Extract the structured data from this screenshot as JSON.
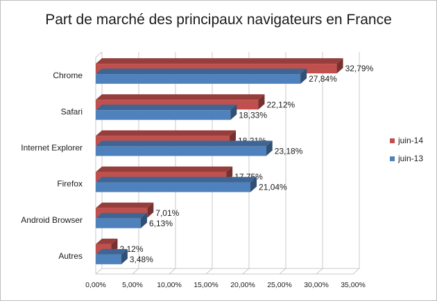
{
  "chart_data": {
    "type": "bar",
    "orientation": "horizontal",
    "title": "Part de marché des principaux navigateurs en France",
    "categories": [
      "Chrome",
      "Safari",
      "Internet Explorer",
      "Firefox",
      "Android Browser",
      "Autres"
    ],
    "series": [
      {
        "name": "juin-14",
        "color": "#c0504d",
        "values": [
          32.79,
          22.12,
          18.21,
          17.75,
          7.01,
          2.12
        ],
        "labels": [
          "32,79%",
          "22,12%",
          "18,21%",
          "17,75%",
          "7,01%",
          "2,12%"
        ]
      },
      {
        "name": "juin-13",
        "color": "#4f81bd",
        "values": [
          27.84,
          18.33,
          23.18,
          21.04,
          6.13,
          3.48
        ],
        "labels": [
          "27,84%",
          "18,33%",
          "23,18%",
          "21,04%",
          "6,13%",
          "3,48%"
        ]
      }
    ],
    "xlim": [
      0,
      35
    ],
    "xticks": [
      0,
      5,
      10,
      15,
      20,
      25,
      30,
      35
    ],
    "xtick_labels": [
      "0,00%",
      "5,00%",
      "10,00%",
      "15,00%",
      "20,00%",
      "25,00%",
      "30,00%",
      "35,00%"
    ],
    "legend_position": "right",
    "grid": "vertical",
    "style": "3d"
  }
}
